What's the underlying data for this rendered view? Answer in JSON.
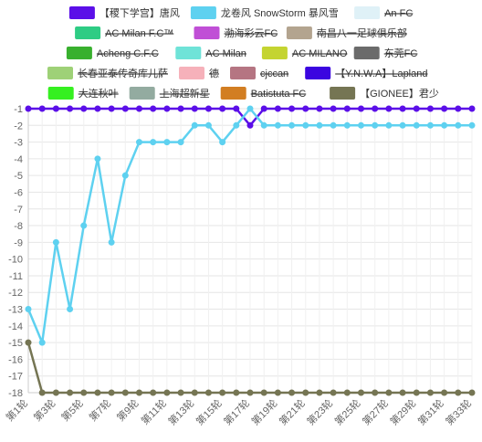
{
  "chart_data": {
    "type": "line",
    "title": "",
    "xlabel": "",
    "ylabel": "",
    "ylim": [
      -18,
      -1
    ],
    "y_ticks": [
      -1,
      -2,
      -3,
      -4,
      -5,
      -6,
      -7,
      -8,
      -9,
      -10,
      -11,
      -12,
      -13,
      -14,
      -15,
      -16,
      -17,
      -18
    ],
    "x_categories": [
      "第1轮",
      "第2轮",
      "第3轮",
      "第4轮",
      "第5轮",
      "第6轮",
      "第7轮",
      "第8轮",
      "第9轮",
      "第10轮",
      "第11轮",
      "第12轮",
      "第13轮",
      "第14轮",
      "第15轮",
      "第16轮",
      "第17轮",
      "第18轮",
      "第19轮",
      "第20轮",
      "第21轮",
      "第22轮",
      "第23轮",
      "第24轮",
      "第25轮",
      "第26轮",
      "第27轮",
      "第28轮",
      "第29轮",
      "第30轮",
      "第31轮",
      "第32轮",
      "第33轮"
    ],
    "x_tick_labels_shown": [
      "第1轮",
      "第3轮",
      "第5轮",
      "第7轮",
      "第9轮",
      "第11轮",
      "第13轮",
      "第15轮",
      "第17轮",
      "第19轮",
      "第21轮",
      "第23轮",
      "第25轮",
      "第27轮",
      "第29轮",
      "第31轮",
      "第33轮"
    ],
    "grid": true,
    "legend_position": "top",
    "legend": [
      {
        "name": "【稷下学宫】唐风",
        "color": "#5b0fe8",
        "visible": true
      },
      {
        "name": "龙卷风 SnowStorm 暴风雪",
        "color": "#5ed1f0",
        "visible": true
      },
      {
        "name": "An FC",
        "color": "#dff1f7",
        "visible": false
      },
      {
        "name": "AC Milan F.C™",
        "color": "#2ecc84",
        "visible": false
      },
      {
        "name": "渤海彩云FC",
        "color": "#c04fd6",
        "visible": false
      },
      {
        "name": "南昌八一足球俱乐部",
        "color": "#b3a48f",
        "visible": false
      },
      {
        "name": "Acheng C.F.C",
        "color": "#38b02e",
        "visible": false
      },
      {
        "name": "AC Milan",
        "color": "#6fe3d8",
        "visible": false
      },
      {
        "name": "AC MILANO",
        "color": "#c4d431",
        "visible": false
      },
      {
        "name": "东莞FC",
        "color": "#6b6b6b",
        "visible": false
      },
      {
        "name": "长春亚泰传奇库儿萨",
        "color": "#9ed177",
        "visible": false
      },
      {
        "name": "德",
        "color": "#f6b1ba",
        "visible": false
      },
      {
        "name": "cjccan",
        "color": "#b57582",
        "visible": false
      },
      {
        "name": "【Y.N.W.A】Lapland",
        "color": "#3b05e0",
        "visible": false
      },
      {
        "name": "大连秋叶",
        "color": "#35f020",
        "visible": false
      },
      {
        "name": "上海超新星",
        "color": "#93aba0",
        "visible": false
      },
      {
        "name": "Batistuta FC",
        "color": "#d27e22",
        "visible": false
      },
      {
        "name": "【GIONEE】君少",
        "color": "#757553",
        "visible": true
      }
    ],
    "series": [
      {
        "name": "【稷下学宫】唐风",
        "color": "#5b0fe8",
        "values": [
          -1,
          -1,
          -1,
          -1,
          -1,
          -1,
          -1,
          -1,
          -1,
          -1,
          -1,
          -1,
          -1,
          -1,
          -1,
          -1,
          -2,
          -1,
          -1,
          -1,
          -1,
          -1,
          -1,
          -1,
          -1,
          -1,
          -1,
          -1,
          -1,
          -1,
          -1,
          -1,
          -1
        ]
      },
      {
        "name": "龙卷风 SnowStorm 暴风雪",
        "color": "#5ed1f0",
        "values": [
          -13,
          -15,
          -9,
          -13,
          -8,
          -4,
          -9,
          -5,
          -3,
          -3,
          -3,
          -3,
          -2,
          -2,
          -3,
          -2,
          -1,
          -2,
          -2,
          -2,
          -2,
          -2,
          -2,
          -2,
          -2,
          -2,
          -2,
          -2,
          -2,
          -2,
          -2,
          -2,
          -2
        ]
      },
      {
        "name": "【GIONEE】君少",
        "color": "#757553",
        "values": [
          -15,
          -18,
          -18,
          -18,
          -18,
          -18,
          -18,
          -18,
          -18,
          -18,
          -18,
          -18,
          -18,
          -18,
          -18,
          -18,
          -18,
          -18,
          -18,
          -18,
          -18,
          -18,
          -18,
          -18,
          -18,
          -18,
          -18,
          -18,
          -18,
          -18,
          -18,
          -18,
          -18
        ]
      }
    ]
  }
}
